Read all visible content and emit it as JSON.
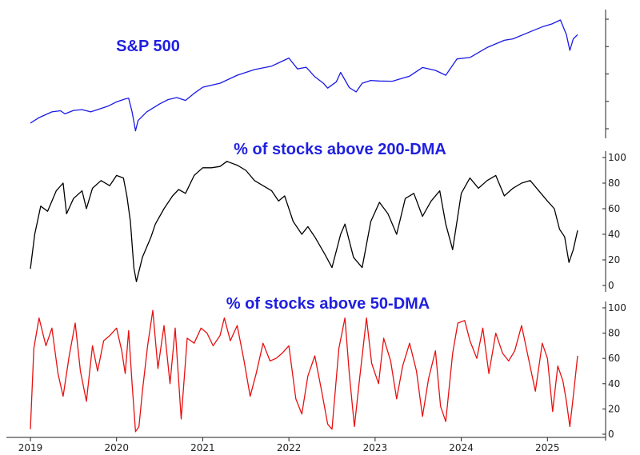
{
  "chart_data": [
    {
      "type": "line",
      "title": "S&P 500",
      "title_color": "#1f1fe0",
      "line_color": "#1a1ae6",
      "xlim": [
        2019.0,
        2025.35
      ],
      "ylim": [
        2200,
        6250
      ],
      "y_tick_labels_shown": false,
      "right_axis": true,
      "series": [
        {
          "x": [
            2019.0,
            2019.1,
            2019.25,
            2019.35,
            2019.4,
            2019.5,
            2019.6,
            2019.7,
            2019.8,
            2019.9,
            2020.0,
            2020.1,
            2020.14,
            2020.18,
            2020.22,
            2020.25,
            2020.35,
            2020.5,
            2020.6,
            2020.7,
            2020.8,
            2020.9,
            2021.0,
            2021.2,
            2021.4,
            2021.6,
            2021.8,
            2021.9,
            2022.0,
            2022.1,
            2022.2,
            2022.3,
            2022.4,
            2022.45,
            2022.55,
            2022.6,
            2022.7,
            2022.78,
            2022.85,
            2022.95,
            2023.05,
            2023.2,
            2023.4,
            2023.55,
            2023.7,
            2023.82,
            2023.95,
            2024.1,
            2024.3,
            2024.5,
            2024.6,
            2024.8,
            2024.95,
            2025.05,
            2025.15,
            2025.22,
            2025.26,
            2025.3,
            2025.35
          ],
          "y": [
            2510,
            2700,
            2900,
            2940,
            2830,
            2950,
            2980,
            2900,
            3000,
            3100,
            3250,
            3350,
            3380,
            2900,
            2240,
            2600,
            2900,
            3180,
            3330,
            3400,
            3300,
            3550,
            3760,
            3900,
            4180,
            4380,
            4500,
            4640,
            4780,
            4400,
            4460,
            4130,
            3900,
            3730,
            3950,
            4280,
            3750,
            3600,
            3900,
            4000,
            3980,
            3970,
            4150,
            4450,
            4350,
            4180,
            4750,
            4800,
            5150,
            5400,
            5450,
            5700,
            5880,
            5970,
            6110,
            5600,
            5050,
            5450,
            5600
          ]
        }
      ]
    },
    {
      "type": "line",
      "title": "% of stocks above 200-DMA",
      "title_color": "#1f1fe0",
      "line_color": "#000000",
      "xlim": [
        2019.0,
        2025.35
      ],
      "ylim": [
        0,
        100
      ],
      "y_ticks": [
        0,
        20,
        40,
        60,
        80,
        100
      ],
      "series": [
        {
          "x": [
            2019.0,
            2019.05,
            2019.12,
            2019.2,
            2019.3,
            2019.38,
            2019.42,
            2019.5,
            2019.6,
            2019.65,
            2019.72,
            2019.82,
            2019.92,
            2020.0,
            2020.08,
            2020.12,
            2020.16,
            2020.2,
            2020.23,
            2020.3,
            2020.4,
            2020.45,
            2020.55,
            2020.65,
            2020.72,
            2020.8,
            2020.9,
            2021.0,
            2021.1,
            2021.2,
            2021.28,
            2021.4,
            2021.5,
            2021.6,
            2021.7,
            2021.8,
            2021.88,
            2021.95,
            2022.05,
            2022.15,
            2022.22,
            2022.3,
            2022.42,
            2022.5,
            2022.6,
            2022.65,
            2022.75,
            2022.85,
            2022.95,
            2023.05,
            2023.15,
            2023.25,
            2023.35,
            2023.45,
            2023.55,
            2023.65,
            2023.75,
            2023.82,
            2023.9,
            2024.0,
            2024.1,
            2024.2,
            2024.3,
            2024.4,
            2024.5,
            2024.6,
            2024.7,
            2024.8,
            2024.9,
            2025.0,
            2025.08,
            2025.14,
            2025.2,
            2025.25,
            2025.3,
            2025.35
          ],
          "y": [
            13,
            40,
            62,
            58,
            74,
            80,
            56,
            68,
            74,
            60,
            76,
            82,
            78,
            86,
            84,
            70,
            50,
            14,
            3,
            22,
            38,
            48,
            60,
            70,
            75,
            72,
            86,
            92,
            92,
            93,
            97,
            94,
            90,
            82,
            78,
            74,
            66,
            70,
            50,
            40,
            46,
            38,
            24,
            14,
            40,
            48,
            22,
            14,
            50,
            65,
            56,
            40,
            68,
            72,
            54,
            66,
            74,
            48,
            28,
            72,
            84,
            76,
            82,
            86,
            70,
            76,
            80,
            82,
            74,
            66,
            60,
            44,
            38,
            18,
            28,
            43
          ]
        }
      ]
    },
    {
      "type": "line",
      "title": "% of stocks above 50-DMA",
      "title_color": "#1f1fe0",
      "line_color": "#e81010",
      "xlim": [
        2019.0,
        2025.35
      ],
      "ylim": [
        0,
        100
      ],
      "y_ticks": [
        0,
        20,
        40,
        60,
        80,
        100
      ],
      "x_tick_labels": [
        "2019",
        "2020",
        "2021",
        "2022",
        "2023",
        "2024",
        "2025"
      ],
      "x_ticks": [
        2019,
        2020,
        2021,
        2022,
        2023,
        2024,
        2025
      ],
      "series": [
        {
          "x": [
            2019.0,
            2019.04,
            2019.1,
            2019.18,
            2019.25,
            2019.32,
            2019.38,
            2019.45,
            2019.52,
            2019.58,
            2019.65,
            2019.72,
            2019.78,
            2019.85,
            2019.92,
            2020.0,
            2020.06,
            2020.1,
            2020.14,
            2020.18,
            2020.22,
            2020.26,
            2020.3,
            2020.36,
            2020.42,
            2020.48,
            2020.55,
            2020.62,
            2020.68,
            2020.75,
            2020.82,
            2020.9,
            2020.98,
            2021.05,
            2021.12,
            2021.2,
            2021.25,
            2021.32,
            2021.4,
            2021.48,
            2021.55,
            2021.62,
            2021.7,
            2021.78,
            2021.85,
            2021.92,
            2022.0,
            2022.08,
            2022.15,
            2022.22,
            2022.3,
            2022.38,
            2022.45,
            2022.5,
            2022.58,
            2022.65,
            2022.7,
            2022.76,
            2022.82,
            2022.9,
            2022.96,
            2023.04,
            2023.1,
            2023.18,
            2023.25,
            2023.32,
            2023.4,
            2023.48,
            2023.55,
            2023.62,
            2023.7,
            2023.76,
            2023.82,
            2023.9,
            2023.96,
            2024.04,
            2024.1,
            2024.18,
            2024.25,
            2024.32,
            2024.4,
            2024.48,
            2024.55,
            2024.62,
            2024.7,
            2024.78,
            2024.86,
            2024.94,
            2025.0,
            2025.06,
            2025.12,
            2025.18,
            2025.22,
            2025.26,
            2025.3,
            2025.35
          ],
          "y": [
            4,
            68,
            92,
            70,
            84,
            48,
            30,
            62,
            88,
            50,
            26,
            70,
            50,
            74,
            78,
            84,
            66,
            48,
            82,
            40,
            2,
            6,
            34,
            70,
            98,
            52,
            86,
            40,
            84,
            12,
            76,
            72,
            84,
            80,
            70,
            78,
            92,
            74,
            86,
            58,
            30,
            48,
            72,
            58,
            60,
            64,
            70,
            28,
            16,
            46,
            62,
            34,
            8,
            4,
            68,
            92,
            48,
            6,
            44,
            92,
            56,
            40,
            76,
            58,
            28,
            54,
            72,
            50,
            14,
            44,
            66,
            22,
            10,
            64,
            88,
            90,
            74,
            60,
            84,
            48,
            80,
            64,
            58,
            66,
            86,
            60,
            34,
            72,
            60,
            18,
            54,
            42,
            26,
            6,
            30,
            62
          ]
        }
      ]
    }
  ]
}
